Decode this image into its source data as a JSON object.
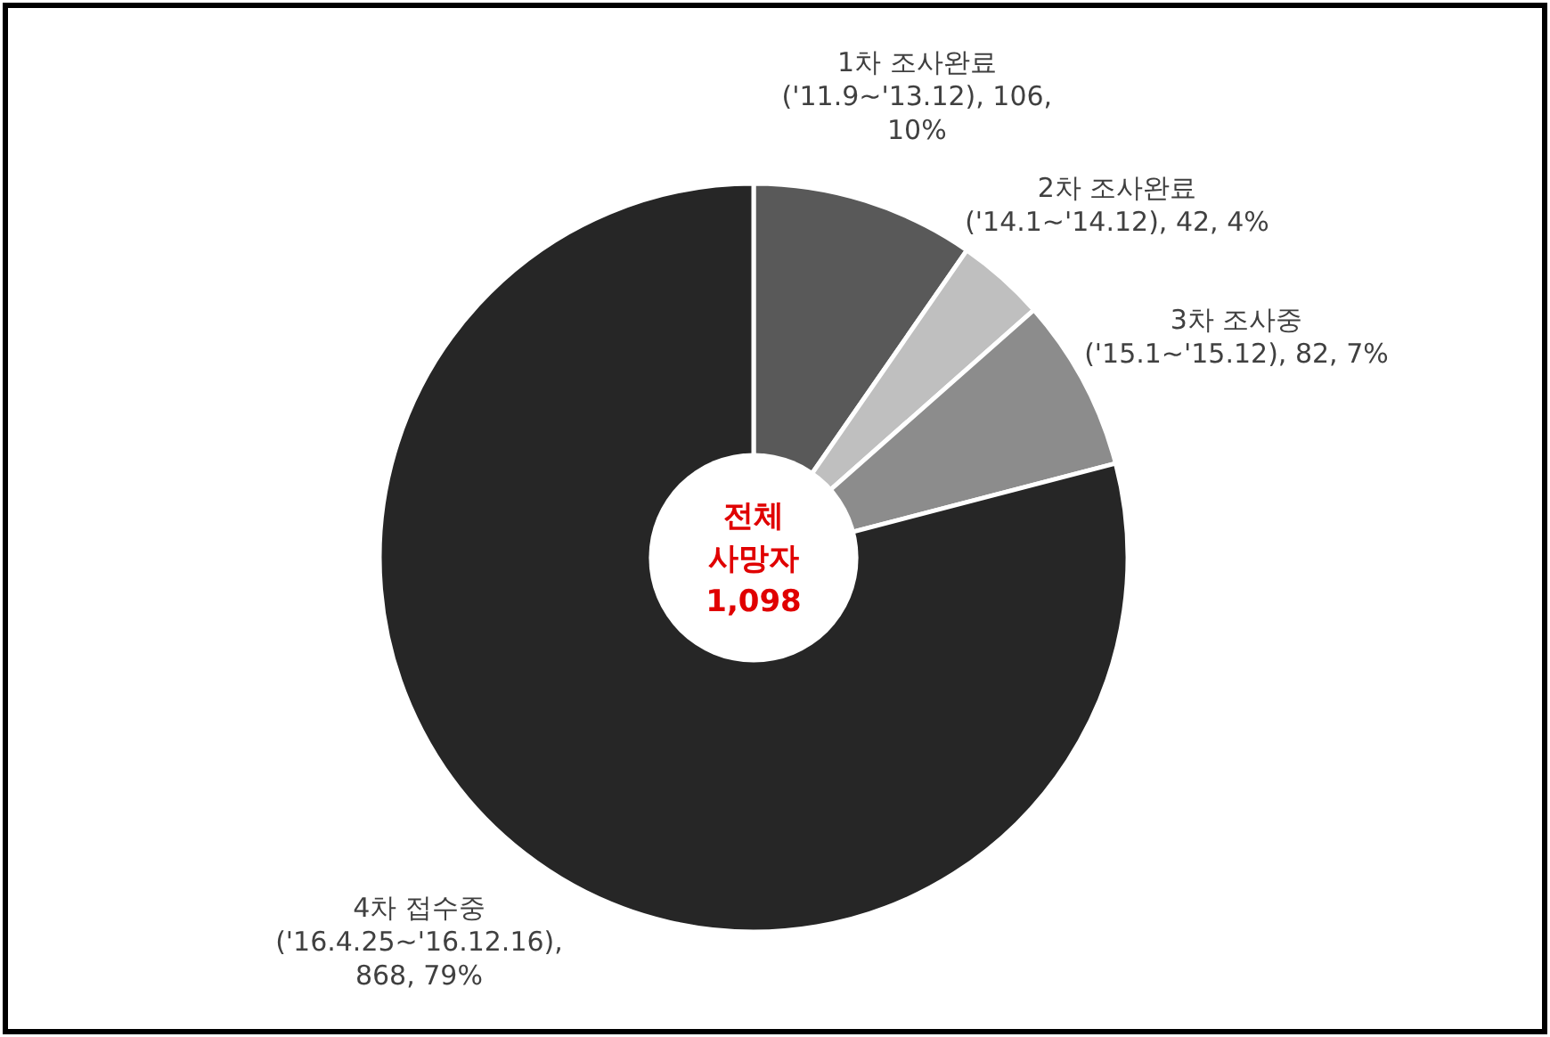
{
  "chart_data": {
    "type": "donut",
    "categories": [
      "1차 조사완료",
      "2차 조사완료",
      "3차 조사중",
      "4차 접수중"
    ],
    "values": [
      106,
      42,
      82,
      868
    ],
    "colors": [
      "#595959",
      "#bfbfbf",
      "#8c8c8c",
      "#262626"
    ],
    "value_labels": [
      "('11.9~'13.12), 106, 10%",
      "('14.1~'14.12), 42, 4%",
      "('15.1~'15.12), 82, 7%",
      "('16.4.25~'16.12.16), 868, 79%"
    ],
    "annotations": [
      "전체",
      "사망자",
      "1,098"
    ],
    "legend": false
  }
}
